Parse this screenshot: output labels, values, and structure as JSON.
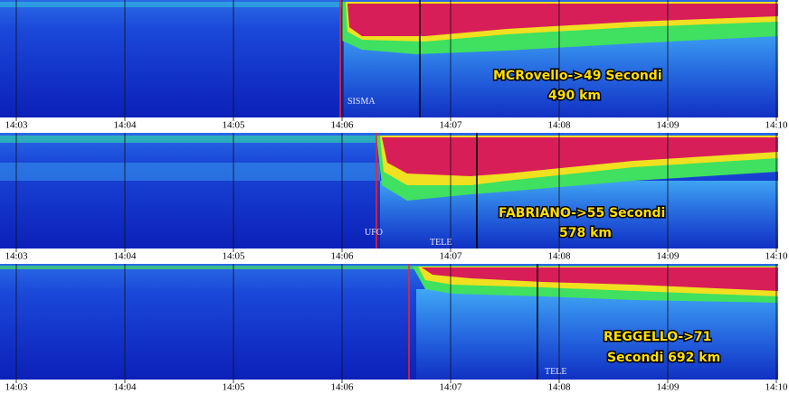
{
  "panels": [
    {
      "ticks": [
        "14:03",
        "14:04",
        "14:05",
        "14:06",
        "14:07",
        "14:08",
        "14:09",
        "14:10"
      ],
      "notes": [
        "SISMA"
      ],
      "station": [
        "MCRovello->49 Secondi",
        "490 km"
      ]
    },
    {
      "ticks": [
        "14:03",
        "14:04",
        "14:05",
        "14:06",
        "14:07",
        "14:08",
        "14:09",
        "14:10"
      ],
      "notes": [
        "UFO",
        "TELE"
      ],
      "station": [
        "FABRIANO->55 Secondi",
        "578 km"
      ]
    },
    {
      "ticks": [
        "14:03",
        "14:04",
        "14:05",
        "14:06",
        "14:07",
        "14:08",
        "14:09",
        "14:10"
      ],
      "notes": [
        "TELE"
      ],
      "station": [
        "REGGELLO->71",
        "Secondi 692 km"
      ]
    }
  ]
}
